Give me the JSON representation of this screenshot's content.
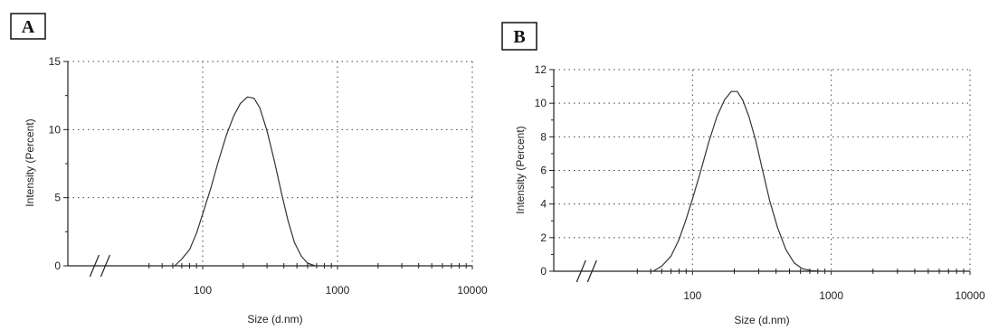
{
  "chart_data": [
    {
      "panel_label": "A",
      "type": "line",
      "xlabel": "Size (d.nm)",
      "ylabel": "Intensity (Percent)",
      "x_scale": "log",
      "xlim": [
        10,
        10000
      ],
      "ylim": [
        0,
        15
      ],
      "x_ticks": [
        "100",
        "1000",
        "10000"
      ],
      "y_ticks": [
        "0",
        "5",
        "10",
        "15"
      ],
      "grid": true,
      "axis_break": true,
      "series": [
        {
          "x": [
            62,
            70,
            80,
            90,
            100,
            115,
            130,
            150,
            170,
            190,
            215,
            240,
            265,
            300,
            340,
            385,
            430,
            480,
            540,
            600,
            680
          ],
          "y": [
            0,
            0.5,
            1.2,
            2.4,
            3.8,
            5.7,
            7.6,
            9.6,
            11.0,
            11.9,
            12.4,
            12.3,
            11.6,
            9.9,
            7.7,
            5.3,
            3.3,
            1.7,
            0.7,
            0.2,
            0
          ]
        }
      ]
    },
    {
      "panel_label": "B",
      "type": "line",
      "xlabel": "Size (d.nm)",
      "ylabel": "Intensity (Percent)",
      "x_scale": "log",
      "xlim": [
        10,
        10000
      ],
      "ylim": [
        0,
        12
      ],
      "x_ticks": [
        "100",
        "1000",
        "10000"
      ],
      "y_ticks": [
        "0",
        "2",
        "4",
        "6",
        "8",
        "10",
        "12"
      ],
      "grid": true,
      "axis_break": true,
      "series": [
        {
          "x": [
            52,
            60,
            70,
            80,
            90,
            100,
            115,
            130,
            150,
            170,
            190,
            210,
            230,
            255,
            285,
            320,
            360,
            410,
            470,
            540,
            620,
            720,
            830
          ],
          "y": [
            0,
            0.3,
            0.9,
            1.9,
            3.1,
            4.3,
            6.0,
            7.6,
            9.2,
            10.2,
            10.7,
            10.7,
            10.2,
            9.2,
            7.8,
            6.0,
            4.2,
            2.6,
            1.3,
            0.5,
            0.15,
            0.03,
            0
          ]
        }
      ]
    }
  ]
}
